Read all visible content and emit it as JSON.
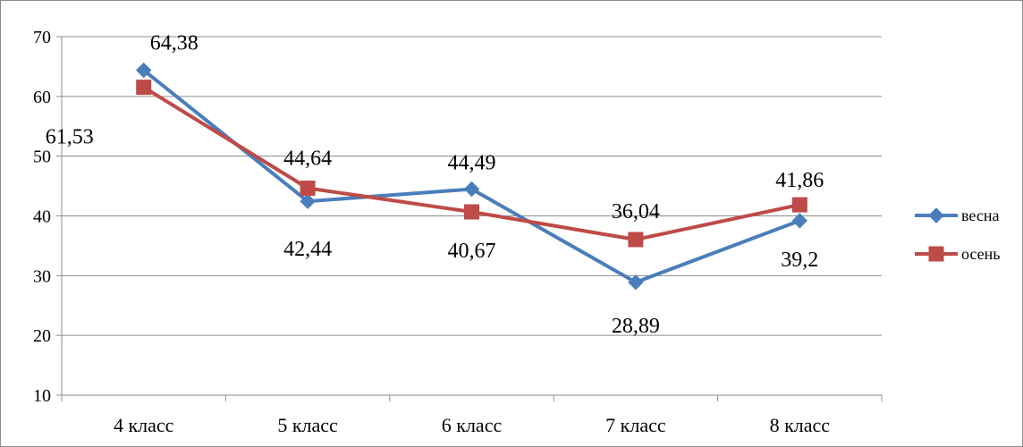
{
  "chart_data": {
    "type": "line",
    "categories": [
      "4 класс",
      "5 класс",
      "6 класс",
      "7 класс",
      "8 класс"
    ],
    "ylim": [
      10,
      70
    ],
    "yticks": [
      10,
      20,
      30,
      40,
      50,
      60,
      70
    ],
    "grid": true,
    "legend_position": "right",
    "series": [
      {
        "name": "весна",
        "values": [
          64.38,
          42.44,
          44.49,
          28.89,
          39.2
        ],
        "data_labels": [
          "64,38",
          "42,44",
          "44,49",
          "28,89",
          "39,2"
        ],
        "color": "#4a7ebb",
        "marker": "diamond"
      },
      {
        "name": "осень",
        "values": [
          61.53,
          44.64,
          40.67,
          36.04,
          41.86
        ],
        "data_labels": [
          "61,53",
          "44,64",
          "40,67",
          "36,04",
          "41,86"
        ],
        "color": "#be4b48",
        "marker": "square"
      }
    ]
  }
}
